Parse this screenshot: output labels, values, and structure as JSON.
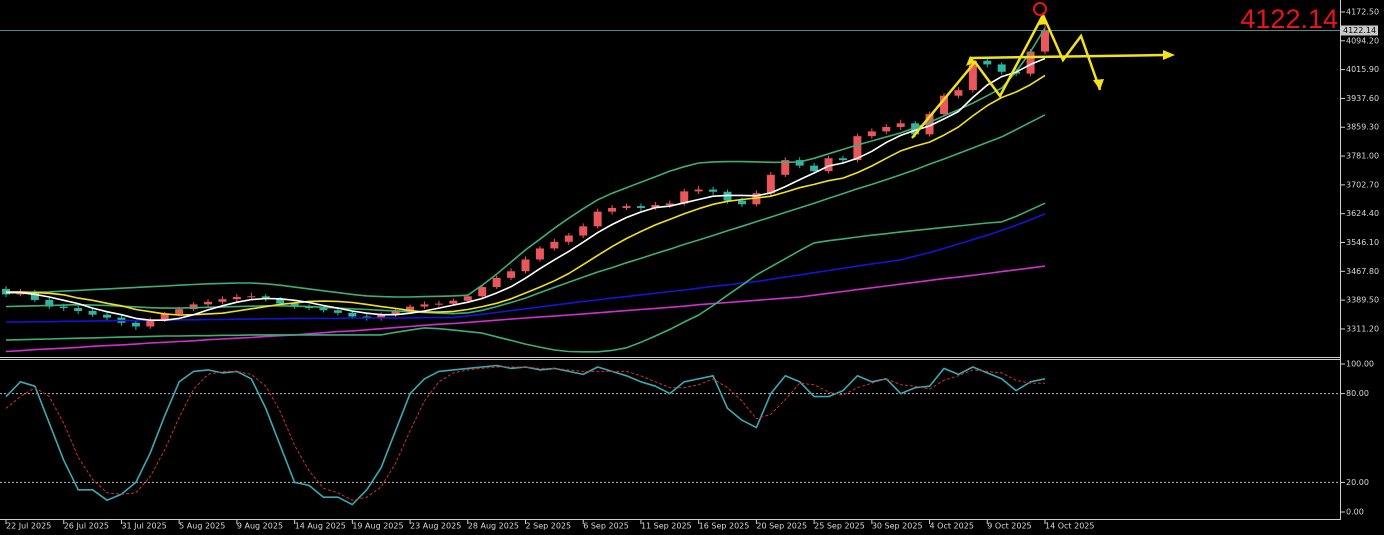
{
  "chart_data": [
    {
      "type": "candlestick",
      "categories": [
        "22 Jul 2025",
        null,
        null,
        null,
        "26 Jul 2025",
        null,
        null,
        null,
        "31 Jul 2025",
        null,
        null,
        null,
        "5 Aug 2025",
        null,
        null,
        null,
        "9 Aug 2025",
        null,
        null,
        null,
        "14 Aug 2025",
        null,
        null,
        null,
        "19 Aug 2025",
        null,
        null,
        null,
        "23 Aug 2025",
        null,
        null,
        null,
        "28 Aug 2025",
        null,
        null,
        null,
        "2 Sep 2025",
        null,
        null,
        null,
        "6 Sep 2025",
        null,
        null,
        null,
        "11 Sep 2025",
        null,
        null,
        null,
        "16 Sep 2025",
        null,
        null,
        null,
        "20 Sep 2025",
        null,
        null,
        null,
        "25 Sep 2025",
        null,
        null,
        null,
        "30 Sep 2025",
        null,
        null,
        null,
        "4 Oct 2025",
        null,
        null,
        null,
        "9 Oct 2025",
        null,
        null,
        null,
        "14 Oct 2025"
      ],
      "open": [
        3420,
        3405,
        3412,
        3390,
        3372,
        3368,
        3360,
        3350,
        3342,
        3328,
        3318,
        3335,
        3352,
        3365,
        3378,
        3385,
        3392,
        3398,
        3400,
        3393,
        3380,
        3372,
        3368,
        3362,
        3355,
        3345,
        3340,
        3350,
        3362,
        3372,
        3378,
        3380,
        3388,
        3400,
        3425,
        3450,
        3468,
        3500,
        3530,
        3548,
        3565,
        3590,
        3630,
        3640,
        3645,
        3640,
        3648,
        3652,
        3685,
        3690,
        3684,
        3660,
        3650,
        3680,
        3730,
        3770,
        3755,
        3740,
        3775,
        3770,
        3835,
        3848,
        3860,
        3870,
        3840,
        3895,
        3945,
        3960,
        4040,
        4030,
        4010,
        4005,
        4065
      ],
      "high": [
        3428,
        3420,
        3418,
        3396,
        3380,
        3374,
        3366,
        3356,
        3348,
        3334,
        3342,
        3358,
        3372,
        3384,
        3392,
        3400,
        3406,
        3410,
        3406,
        3398,
        3386,
        3378,
        3374,
        3368,
        3360,
        3352,
        3356,
        3368,
        3378,
        3386,
        3388,
        3394,
        3406,
        3430,
        3456,
        3476,
        3508,
        3536,
        3556,
        3572,
        3598,
        3638,
        3648,
        3652,
        3652,
        3656,
        3660,
        3692,
        3700,
        3698,
        3690,
        3668,
        3688,
        3738,
        3778,
        3778,
        3762,
        3782,
        3782,
        3842,
        3856,
        3868,
        3880,
        3876,
        3902,
        3952,
        3968,
        4048,
        4050,
        4036,
        4018,
        4072,
        4150
      ],
      "low": [
        3398,
        3400,
        3384,
        3366,
        3360,
        3352,
        3344,
        3334,
        3320,
        3308,
        3312,
        3330,
        3346,
        3360,
        3372,
        3378,
        3386,
        3390,
        3386,
        3372,
        3366,
        3362,
        3356,
        3348,
        3338,
        3334,
        3334,
        3344,
        3356,
        3366,
        3372,
        3374,
        3382,
        3394,
        3420,
        3444,
        3462,
        3494,
        3524,
        3540,
        3558,
        3584,
        3622,
        3634,
        3632,
        3634,
        3640,
        3646,
        3678,
        3676,
        3652,
        3642,
        3644,
        3674,
        3724,
        3748,
        3732,
        3734,
        3762,
        3764,
        3828,
        3840,
        3852,
        3832,
        3834,
        3888,
        3938,
        3954,
        4022,
        4002,
        3998,
        3998,
        4058
      ],
      "close": [
        3405,
        3412,
        3390,
        3372,
        3368,
        3360,
        3350,
        3342,
        3328,
        3318,
        3335,
        3352,
        3365,
        3378,
        3385,
        3392,
        3398,
        3400,
        3393,
        3380,
        3372,
        3368,
        3362,
        3355,
        3345,
        3340,
        3350,
        3362,
        3372,
        3378,
        3380,
        3388,
        3400,
        3425,
        3450,
        3468,
        3500,
        3530,
        3548,
        3565,
        3590,
        3630,
        3640,
        3645,
        3640,
        3648,
        3652,
        3685,
        3690,
        3684,
        3660,
        3650,
        3680,
        3730,
        3770,
        3755,
        3740,
        3775,
        3770,
        3835,
        3848,
        3860,
        3870,
        3840,
        3895,
        3945,
        3960,
        4040,
        4030,
        4010,
        4005,
        4065,
        4122.14
      ],
      "up_color": "#e9575c",
      "down_color": "#2fb5a2",
      "series": [
        {
          "color": "#d22ed2",
          "values": [
            3250,
            3252,
            3255,
            3257,
            3259,
            3261,
            3264,
            3266,
            3268,
            3270,
            3273,
            3275,
            3277,
            3279,
            3282,
            3284,
            3286,
            3288,
            3291,
            3293,
            3295,
            3298,
            3301,
            3304,
            3306,
            3309,
            3312,
            3315,
            3318,
            3321,
            3324,
            3326,
            3329,
            3332,
            3335,
            3338,
            3341,
            3344,
            3346,
            3349,
            3352,
            3355,
            3358,
            3361,
            3364,
            3367,
            3370,
            3373,
            3377,
            3380,
            3383,
            3386,
            3389,
            3392,
            3395,
            3398,
            3403,
            3408,
            3413,
            3418,
            3423,
            3428,
            3433,
            3438,
            3443,
            3448,
            3452,
            3457,
            3462,
            3467,
            3472,
            3477,
            3482
          ]
        },
        {
          "color": "#1414d8",
          "values": [
            3330,
            3330,
            3331,
            3331,
            3332,
            3332,
            3333,
            3333,
            3334,
            3334,
            3335,
            3335,
            3336,
            3336,
            3337,
            3337,
            3338,
            3338,
            3339,
            3339,
            3340,
            3340,
            3340,
            3340,
            3341,
            3341,
            3341,
            3341,
            3341,
            3342,
            3342,
            3342,
            3346,
            3351,
            3356,
            3361,
            3366,
            3371,
            3376,
            3381,
            3386,
            3390,
            3395,
            3399,
            3404,
            3408,
            3413,
            3417,
            3422,
            3427,
            3431,
            3436,
            3440,
            3446,
            3452,
            3458,
            3464,
            3470,
            3476,
            3482,
            3488,
            3493,
            3499,
            3509,
            3519,
            3530,
            3542,
            3554,
            3566,
            3579,
            3593,
            3608,
            3624
          ]
        },
        {
          "color": "#3dae78",
          "values": [
            3409,
            3410,
            3411,
            3412,
            3414,
            3416,
            3418,
            3420,
            3422,
            3424,
            3426,
            3428,
            3430,
            3432,
            3434,
            3435,
            3436,
            3436,
            3434,
            3430,
            3425,
            3420,
            3415,
            3410,
            3405,
            3401,
            3399,
            3398,
            3398,
            3399,
            3400,
            3401,
            3403,
            3430,
            3460,
            3493,
            3526,
            3555,
            3585,
            3612,
            3638,
            3662,
            3680,
            3695,
            3710,
            3725,
            3740,
            3752,
            3762,
            3765,
            3766,
            3766,
            3765,
            3764,
            3764,
            3765,
            3775,
            3787,
            3799,
            3811,
            3822,
            3833,
            3844,
            3858,
            3873,
            3890,
            3907,
            3925,
            3945,
            3966,
            4010,
            4065,
            4129
          ]
        },
        {
          "color": "#3dae78",
          "values": [
            3372,
            3373,
            3374,
            3375,
            3376,
            3377,
            3376,
            3375,
            3373,
            3371,
            3369,
            3368,
            3368,
            3369,
            3370,
            3371,
            3372,
            3373,
            3374,
            3374,
            3373,
            3372,
            3370,
            3368,
            3366,
            3364,
            3362,
            3360,
            3358,
            3356,
            3354,
            3353,
            3355,
            3362,
            3372,
            3383,
            3395,
            3410,
            3424,
            3438,
            3452,
            3466,
            3478,
            3491,
            3503,
            3516,
            3528,
            3541,
            3553,
            3565,
            3578,
            3590,
            3603,
            3615,
            3628,
            3640,
            3653,
            3666,
            3679,
            3692,
            3704,
            3717,
            3730,
            3744,
            3759,
            3773,
            3788,
            3803,
            3818,
            3833,
            3853,
            3873,
            3893
          ]
        },
        {
          "color": "#3dae78",
          "values": [
            3281,
            3282,
            3283,
            3284,
            3285,
            3286,
            3287,
            3288,
            3289,
            3290,
            3291,
            3292,
            3292,
            3293,
            3293,
            3294,
            3294,
            3295,
            3295,
            3295,
            3295,
            3295,
            3295,
            3295,
            3295,
            3295,
            3295,
            3302,
            3308,
            3314,
            3312,
            3308,
            3304,
            3300,
            3290,
            3280,
            3270,
            3262,
            3254,
            3250,
            3249,
            3249,
            3253,
            3260,
            3275,
            3292,
            3310,
            3330,
            3349,
            3375,
            3403,
            3430,
            3458,
            3480,
            3502,
            3524,
            3545,
            3551,
            3556,
            3561,
            3566,
            3570,
            3575,
            3579,
            3583,
            3587,
            3591,
            3595,
            3599,
            3602,
            3617,
            3635,
            3653
          ]
        },
        {
          "color": "#f2e21c",
          "values": [
            3412,
            3412,
            3410,
            3408,
            3404,
            3395,
            3389,
            3381,
            3374,
            3364,
            3358,
            3352,
            3349,
            3350,
            3352,
            3354,
            3360,
            3366,
            3372,
            3378,
            3382,
            3386,
            3387,
            3386,
            3383,
            3378,
            3372,
            3367,
            3361,
            3357,
            3357,
            3359,
            3364,
            3372,
            3381,
            3393,
            3409,
            3425,
            3442,
            3462,
            3486,
            3511,
            3535,
            3557,
            3576,
            3594,
            3609,
            3624,
            3638,
            3650,
            3658,
            3663,
            3667,
            3672,
            3683,
            3695,
            3704,
            3714,
            3721,
            3736,
            3754,
            3775,
            3795,
            3808,
            3819,
            3838,
            3860,
            3890,
            3918,
            3940,
            3955,
            3975,
            4000
          ]
        },
        {
          "color": "#ffffff",
          "values": [
            3410,
            3410,
            3405,
            3398,
            3389,
            3380,
            3368,
            3358,
            3350,
            3340,
            3335,
            3335,
            3340,
            3350,
            3363,
            3374,
            3384,
            3391,
            3394,
            3393,
            3389,
            3383,
            3375,
            3368,
            3360,
            3354,
            3350,
            3350,
            3354,
            3360,
            3368,
            3376,
            3384,
            3394,
            3409,
            3426,
            3449,
            3475,
            3499,
            3522,
            3547,
            3573,
            3595,
            3614,
            3629,
            3641,
            3645,
            3654,
            3663,
            3672,
            3674,
            3674,
            3673,
            3681,
            3698,
            3717,
            3735,
            3754,
            3762,
            3775,
            3794,
            3818,
            3837,
            3851,
            3863,
            3882,
            3902,
            3940,
            3974,
            3997,
            4009,
            4030,
            4046
          ]
        }
      ],
      "last_price": 4122.14,
      "ylim": [
        3235,
        4205
      ],
      "yticks": [
        {
          "value": 4172.5,
          "label": "4172.50"
        },
        {
          "value": 4094.2,
          "label": "4094.20"
        },
        {
          "value": 4015.9,
          "label": "4015.90"
        },
        {
          "value": 3937.6,
          "label": "3937.60"
        },
        {
          "value": 3859.3,
          "label": "3859.30"
        },
        {
          "value": 3781,
          "label": "3781.00"
        },
        {
          "value": 3702.7,
          "label": "3702.70"
        },
        {
          "value": 3624.4,
          "label": "3624.40"
        },
        {
          "value": 3546.1,
          "label": "3546.10"
        },
        {
          "value": 3467.8,
          "label": "3467.80"
        },
        {
          "value": 3389.5,
          "label": "3389.50"
        },
        {
          "value": 3311.2,
          "label": "3311.20"
        }
      ]
    },
    {
      "type": "line",
      "series": [
        {
          "color": "#3aa9b4",
          "values": [
            78,
            88,
            85,
            60,
            35,
            15,
            15,
            8,
            12,
            20,
            40,
            65,
            88,
            95,
            96,
            94,
            95,
            90,
            70,
            45,
            20,
            18,
            10,
            10,
            5,
            15,
            30,
            55,
            80,
            90,
            95,
            96,
            97,
            98,
            99,
            97,
            98,
            96,
            97,
            95,
            93,
            98,
            95,
            92,
            88,
            85,
            80,
            88,
            90,
            92,
            70,
            62,
            57,
            80,
            92,
            88,
            78,
            78,
            82,
            92,
            88,
            90,
            80,
            84,
            85,
            97,
            93,
            98,
            94,
            90,
            82,
            88,
            90
          ]
        },
        {
          "color": "#d0302a",
          "dashed": true,
          "values": [
            70,
            78,
            84,
            78,
            60,
            37,
            22,
            13,
            12,
            13,
            24,
            42,
            64,
            83,
            93,
            95,
            95,
            93,
            85,
            68,
            45,
            28,
            16,
            13,
            8,
            10,
            17,
            33,
            55,
            75,
            88,
            94,
            96,
            97,
            98,
            98,
            98,
            97,
            97,
            96,
            95,
            95,
            95,
            95,
            92,
            88,
            84,
            84,
            86,
            90,
            84,
            75,
            63,
            66,
            76,
            87,
            86,
            81,
            79,
            84,
            87,
            90,
            86,
            85,
            83,
            89,
            92,
            96,
            95,
            94,
            89,
            87,
            87
          ]
        }
      ],
      "levels": [
        80,
        20
      ],
      "ylim": [
        -5.4,
        102.7
      ],
      "yticks": [
        {
          "value": 100,
          "label": "100.00"
        },
        {
          "value": 80,
          "label": "80.00"
        },
        {
          "value": 20,
          "label": "20.00"
        },
        {
          "value": 0,
          "label": "0.00"
        }
      ]
    }
  ]
}
